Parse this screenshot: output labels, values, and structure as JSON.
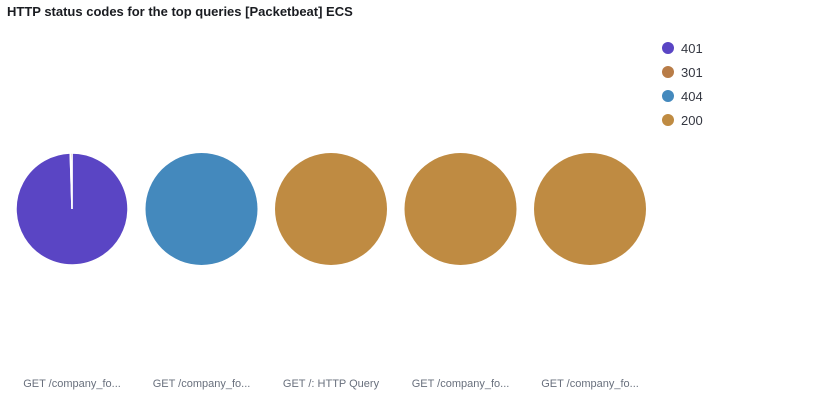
{
  "panel": {
    "title": "HTTP status codes for the top queries [Packetbeat] ECS"
  },
  "chart_data": {
    "type": "pie",
    "title": "HTTP status codes for the top queries [Packetbeat] ECS",
    "legend_position": "top-right",
    "legend": [
      {
        "label": "401",
        "color": "#5a45c4"
      },
      {
        "label": "301",
        "color": "#b87c47"
      },
      {
        "label": "404",
        "color": "#4489bd"
      },
      {
        "label": "200",
        "color": "#bf8b42"
      }
    ],
    "pies": [
      {
        "label": "GET /company_fo...",
        "slices": [
          {
            "name": "401",
            "value": 99.5
          },
          {
            "name": "301",
            "value": 0.5
          }
        ]
      },
      {
        "label": "GET /company_fo...",
        "slices": [
          {
            "name": "404",
            "value": 100
          }
        ]
      },
      {
        "label": "GET /: HTTP Query",
        "slices": [
          {
            "name": "200",
            "value": 100
          }
        ]
      },
      {
        "label": "GET /company_fo...",
        "slices": [
          {
            "name": "200",
            "value": 100
          }
        ]
      },
      {
        "label": "GET /company_fo...",
        "slices": [
          {
            "name": "200",
            "value": 100
          }
        ]
      }
    ]
  }
}
